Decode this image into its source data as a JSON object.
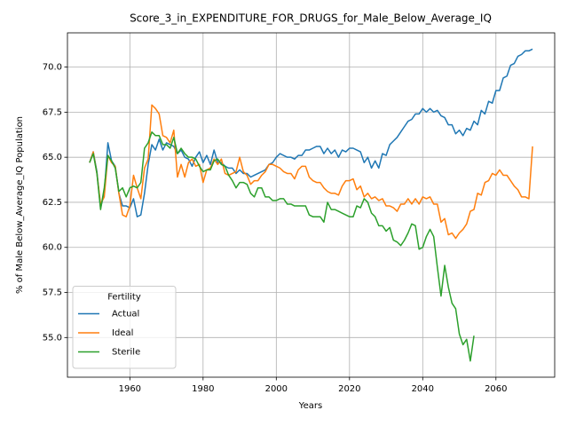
{
  "chart_data": {
    "type": "line",
    "title": "Score_3_in_EXPENDITURE_FOR_DRUGS_for_Male_Below_Average_IQ",
    "xlabel": "Years",
    "ylabel": "% of Male Below_Average_IQ Population",
    "legend_title": "Fertility",
    "legend": "lower left",
    "grid": true,
    "x": [
      1949,
      1950,
      1951,
      1952,
      1953,
      1954,
      1955,
      1956,
      1957,
      1958,
      1959,
      1960,
      1961,
      1962,
      1963,
      1964,
      1965,
      1966,
      1967,
      1968,
      1969,
      1970,
      1971,
      1972,
      1973,
      1974,
      1975,
      1976,
      1977,
      1978,
      1979,
      1980,
      1981,
      1982,
      1983,
      1984,
      1985,
      1986,
      1987,
      1988,
      1989,
      1990,
      1991,
      1992,
      1993,
      1994,
      1995,
      1996,
      1997,
      1998,
      1999,
      2000,
      2001,
      2002,
      2003,
      2004,
      2005,
      2006,
      2007,
      2008,
      2009,
      2010,
      2011,
      2012,
      2013,
      2014,
      2015,
      2016,
      2017,
      2018,
      2019,
      2020,
      2021,
      2022,
      2023,
      2024,
      2025,
      2026,
      2027,
      2028,
      2029,
      2030,
      2031,
      2032,
      2033,
      2034,
      2035,
      2036,
      2037,
      2038,
      2039,
      2040,
      2041,
      2042,
      2043,
      2044,
      2045,
      2046,
      2047,
      2048,
      2049,
      2050,
      2051,
      2052,
      2053,
      2054,
      2055,
      2056,
      2057,
      2058,
      2059,
      2060,
      2061,
      2062,
      2063,
      2064,
      2065,
      2066,
      2067,
      2068,
      2069,
      2070
    ],
    "series": [
      {
        "name": "Actual",
        "color": "#1f77b4",
        "values": [
          64.7,
          65.3,
          64.2,
          62.2,
          63.0,
          65.8,
          64.8,
          64.5,
          63.0,
          62.3,
          62.3,
          62.2,
          62.7,
          61.7,
          61.8,
          63.0,
          64.6,
          65.7,
          65.4,
          66.0,
          65.4,
          65.8,
          65.7,
          65.6,
          65.2,
          65.4,
          65.0,
          64.9,
          64.5,
          65.0,
          65.3,
          64.7,
          65.1,
          64.6,
          65.4,
          64.7,
          64.7,
          64.5,
          64.4,
          64.4,
          64.1,
          64.3,
          64.1,
          64.1,
          63.9,
          64.0,
          64.1,
          64.2,
          64.3,
          64.6,
          64.7,
          65.0,
          65.2,
          65.1,
          65.0,
          65.0,
          64.9,
          65.1,
          65.1,
          65.4,
          65.4,
          65.5,
          65.6,
          65.6,
          65.2,
          65.5,
          65.2,
          65.4,
          65.0,
          65.4,
          65.3,
          65.5,
          65.5,
          65.4,
          65.3,
          64.7,
          65.0,
          64.4,
          64.8,
          64.4,
          65.2,
          65.1,
          65.7,
          65.9,
          66.1,
          66.4,
          66.7,
          67.0,
          67.1,
          67.4,
          67.4,
          67.7,
          67.5,
          67.7,
          67.5,
          67.6,
          67.3,
          67.2,
          66.8,
          66.8,
          66.3,
          66.5,
          66.2,
          66.6,
          66.5,
          67.0,
          66.8,
          67.6,
          67.4,
          68.1,
          68.0,
          68.7,
          68.7,
          69.4,
          69.5,
          70.1,
          70.2,
          70.6,
          70.7,
          70.9,
          70.9,
          71.0
        ]
      },
      {
        "name": "Ideal",
        "color": "#ff7f0e",
        "values": [
          64.7,
          65.3,
          64.1,
          62.4,
          62.8,
          65.1,
          64.7,
          64.5,
          63.0,
          61.8,
          61.7,
          62.3,
          64.0,
          63.3,
          62.7,
          64.4,
          64.9,
          67.9,
          67.7,
          67.4,
          66.2,
          66.1,
          65.8,
          66.5,
          63.9,
          64.6,
          63.9,
          64.7,
          64.9,
          64.5,
          64.6,
          63.6,
          64.3,
          64.4,
          64.9,
          64.6,
          64.9,
          64.1,
          64.0,
          64.1,
          64.2,
          65.0,
          64.2,
          64.0,
          63.5,
          63.7,
          63.7,
          64.0,
          64.2,
          64.6,
          64.6,
          64.5,
          64.4,
          64.2,
          64.1,
          64.1,
          63.8,
          64.3,
          64.5,
          64.5,
          63.9,
          63.7,
          63.6,
          63.6,
          63.3,
          63.1,
          63.0,
          63.0,
          62.9,
          63.4,
          63.7,
          63.7,
          63.8,
          63.2,
          63.4,
          62.8,
          63.0,
          62.7,
          62.8,
          62.6,
          62.7,
          62.3,
          62.3,
          62.2,
          62.0,
          62.4,
          62.4,
          62.7,
          62.4,
          62.7,
          62.4,
          62.8,
          62.7,
          62.8,
          62.4,
          62.4,
          61.4,
          61.6,
          60.7,
          60.8,
          60.5,
          60.8,
          61.0,
          61.3,
          62.0,
          62.1,
          63.0,
          62.9,
          63.6,
          63.7,
          64.1,
          64.0,
          64.3,
          64.0,
          64.0,
          63.7,
          63.4,
          63.2,
          62.8,
          62.8,
          62.7,
          65.6
        ]
      },
      {
        "name": "Sterile",
        "color": "#2ca02c",
        "values": [
          64.7,
          65.2,
          64.1,
          62.1,
          63.3,
          65.1,
          64.8,
          64.4,
          63.1,
          63.3,
          62.8,
          63.3,
          63.4,
          63.3,
          63.6,
          65.5,
          65.8,
          66.4,
          66.2,
          66.2,
          65.7,
          65.7,
          65.5,
          66.1,
          65.2,
          65.5,
          65.2,
          65.0,
          65.0,
          64.9,
          64.5,
          64.2,
          64.3,
          64.3,
          64.8,
          64.9,
          64.6,
          64.5,
          64.0,
          63.7,
          63.3,
          63.6,
          63.6,
          63.5,
          63.0,
          62.8,
          63.3,
          63.3,
          62.8,
          62.8,
          62.6,
          62.6,
          62.7,
          62.7,
          62.4,
          62.4,
          62.3,
          62.3,
          62.3,
          62.3,
          61.8,
          61.7,
          61.7,
          61.7,
          61.4,
          62.5,
          62.1,
          62.1,
          62.0,
          61.9,
          61.8,
          61.7,
          61.7,
          62.3,
          62.2,
          62.7,
          62.5,
          61.9,
          61.7,
          61.2,
          61.2,
          60.9,
          61.1,
          60.4,
          60.3,
          60.1,
          60.4,
          60.8,
          61.3,
          61.2,
          59.9,
          60.0,
          60.6,
          61.0,
          60.6,
          58.9,
          57.3,
          59.0,
          57.8,
          56.9,
          56.6,
          55.2,
          54.6,
          54.9,
          53.7,
          55.1,
          null,
          null,
          null,
          null,
          null,
          null,
          null,
          null,
          null,
          null,
          null,
          null,
          null,
          null,
          null,
          null
        ]
      }
    ],
    "xlim": [
      1942.95,
      2076.05
    ],
    "xticks": [
      1960,
      1980,
      2000,
      2020,
      2040,
      2060
    ],
    "ylim": [
      52.8,
      71.9
    ],
    "yticks": [
      {
        "value": 55,
        "label": "55.0"
      },
      {
        "value": 57.5,
        "label": "57.5"
      },
      {
        "value": 60,
        "label": "60.0"
      },
      {
        "value": 62.5,
        "label": "62.5"
      },
      {
        "value": 65,
        "label": "65.0"
      },
      {
        "value": 67.5,
        "label": "67.5"
      },
      {
        "value": 70,
        "label": "70.0"
      }
    ]
  }
}
